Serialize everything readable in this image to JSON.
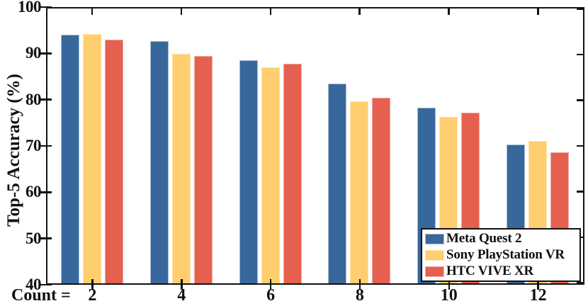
{
  "chart_data": {
    "type": "bar",
    "title": "",
    "ylabel": "Top-5 Accuracy (%)",
    "xlabel_prefix": "Count =",
    "categories": [
      "2",
      "4",
      "6",
      "8",
      "10",
      "12"
    ],
    "series": [
      {
        "name": "Meta Quest 2",
        "color": "#38689B",
        "edge_color": "#A9BDD3",
        "values": [
          94.4,
          93.0,
          88.9,
          83.7,
          78.4,
          70.4
        ]
      },
      {
        "name": "Sony PlayStation VR",
        "color": "#FFCE6F",
        "edge_color": "#FFE3AE",
        "values": [
          94.6,
          90.3,
          87.3,
          79.8,
          76.4,
          71.1
        ]
      },
      {
        "name": "HTC VIVE XR",
        "color": "#E5604F",
        "edge_color": "#F2ABA2",
        "values": [
          93.3,
          89.8,
          88.1,
          80.6,
          77.3,
          68.7
        ]
      }
    ],
    "ylim": [
      40,
      100
    ],
    "yticks": [
      40,
      50,
      60,
      70,
      80,
      90,
      100
    ],
    "grid": false,
    "legend_position": "bottom-right",
    "axis_color": "#111111",
    "background": "#ffffff"
  }
}
